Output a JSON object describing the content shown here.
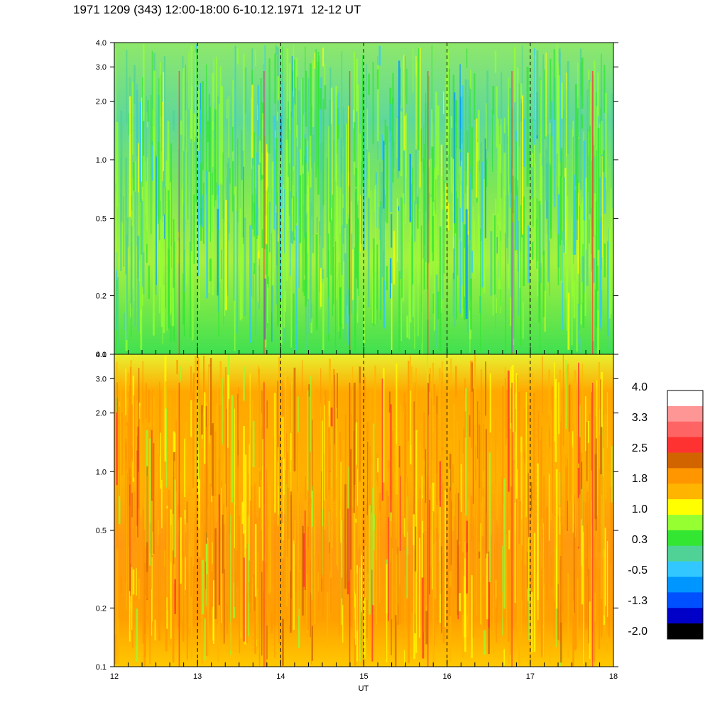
{
  "title": "1971 1209 (343) 12:00-18:00 6-10.12.1971  12-12 UT",
  "chart_data": [
    {
      "type": "heatmap",
      "panel": "upper",
      "x_range": [
        12,
        18
      ],
      "y_range": [
        0.1,
        4.0
      ],
      "y_scale": "log",
      "y_ticks": [
        "0.1",
        "0.2",
        "0.5",
        "1.0",
        "2.0",
        "3.0",
        "4.0"
      ],
      "x_ticks": [],
      "dominant_value_range": [
        -0.5,
        1.0
      ],
      "dashed_vertical_lines_at": [
        13,
        14,
        15,
        16,
        17
      ]
    },
    {
      "type": "heatmap",
      "panel": "lower",
      "x_range": [
        12,
        18
      ],
      "y_range": [
        0.1,
        4.0
      ],
      "y_scale": "log",
      "y_ticks": [
        "0.1",
        "0.2",
        "0.5",
        "1.0",
        "2.0",
        "3.0",
        "4.0"
      ],
      "x_ticks": [
        "12",
        "13",
        "14",
        "15",
        "16",
        "17",
        "18"
      ],
      "xlabel": "UT",
      "dominant_value_range": [
        1.0,
        2.5
      ],
      "dashed_vertical_lines_at": [
        13,
        14,
        15,
        16,
        17
      ]
    }
  ],
  "colorbar": {
    "labels": [
      "4.0",
      "3.3",
      "2.5",
      "1.8",
      "1.0",
      "0.3",
      "-0.5",
      "-1.3",
      "-2.0"
    ],
    "colors": [
      "#ffffff",
      "#ff9696",
      "#ff6464",
      "#ff3232",
      "#d26400",
      "#ff9600",
      "#ffb400",
      "#ffff00",
      "#96ff32",
      "#32e632",
      "#50d296",
      "#32c8ff",
      "#0096ff",
      "#0050ff",
      "#0000c8",
      "#000000"
    ]
  }
}
